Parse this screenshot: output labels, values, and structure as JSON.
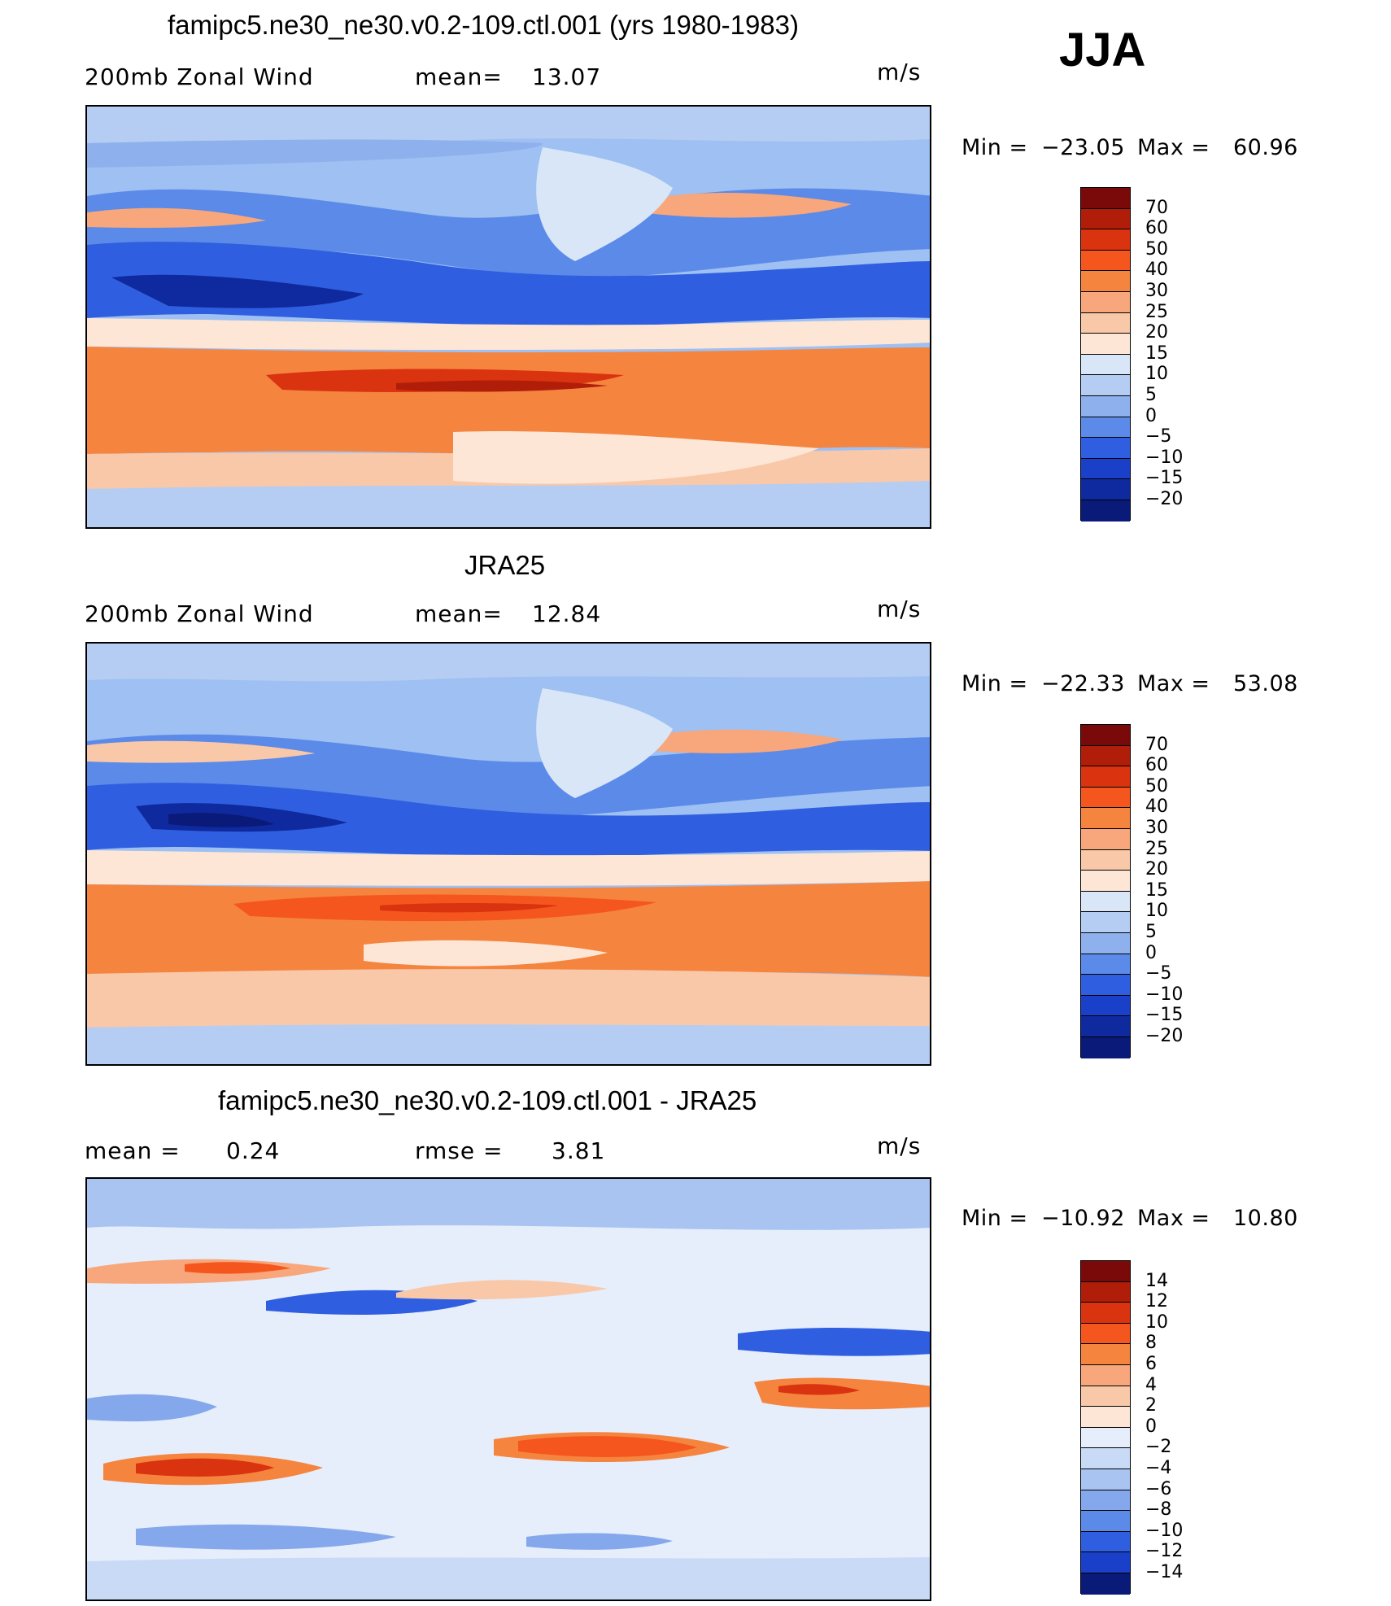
{
  "header": {
    "season": "JJA",
    "units": "m/s"
  },
  "panels": [
    {
      "title": "famipc5.ne30_ne30.v0.2-109.ctl.001 (yrs 1980-1983)",
      "left_label": "200mb Zonal Wind",
      "mean_text": "mean=",
      "mean_value": "13.07",
      "units": "m/s",
      "min_label": "Min =",
      "min_value": "−23.05",
      "max_label": "Max =",
      "max_value": "60.96",
      "colorbar_labels": [
        "70",
        "60",
        "50",
        "40",
        "30",
        "25",
        "20",
        "15",
        "10",
        "5",
        "0",
        "−5",
        "−10",
        "−15",
        "−20"
      ]
    },
    {
      "title": "JRA25",
      "left_label": "200mb Zonal Wind",
      "mean_text": "mean=",
      "mean_value": "12.84",
      "units": "m/s",
      "min_label": "Min =",
      "min_value": "−22.33",
      "max_label": "Max =",
      "max_value": "53.08",
      "colorbar_labels": [
        "70",
        "60",
        "50",
        "40",
        "30",
        "25",
        "20",
        "15",
        "10",
        "5",
        "0",
        "−5",
        "−10",
        "−15",
        "−20"
      ]
    },
    {
      "title": "famipc5.ne30_ne30.v0.2-109.ctl.001 - JRA25",
      "left_label": "mean =",
      "left_value": "0.24",
      "mean_text": "rmse =",
      "mean_value": "3.81",
      "units": "m/s",
      "min_label": "Min =",
      "min_value": "−10.92",
      "max_label": "Max =",
      "max_value": "10.80",
      "colorbar_labels": [
        "14",
        "12",
        "10",
        "8",
        "6",
        "4",
        "2",
        "0",
        "−2",
        "−4",
        "−6",
        "−8",
        "−10",
        "−12",
        "−14"
      ]
    }
  ],
  "colors": {
    "field_scale": [
      "#7a0a0a",
      "#b01e0a",
      "#d9330f",
      "#f5561e",
      "#f5843f",
      "#f7a77b",
      "#f9c8a9",
      "#fde6d6",
      "#d8e6f8",
      "#b5cdf2",
      "#8eb1ee",
      "#5c8ae8",
      "#2f5fe0",
      "#1a3fc8",
      "#0f2a9e",
      "#0a1a78"
    ],
    "diff_scale": [
      "#7a0a0a",
      "#b01e0a",
      "#d9330f",
      "#f5561e",
      "#f5843f",
      "#f7a77b",
      "#f9c8a9",
      "#fde6d6",
      "#e6eefb",
      "#c8daf6",
      "#a9c4f1",
      "#85a8ec",
      "#5c8ae8",
      "#2f5fe0",
      "#1a3fc8",
      "#0a1a78"
    ]
  }
}
